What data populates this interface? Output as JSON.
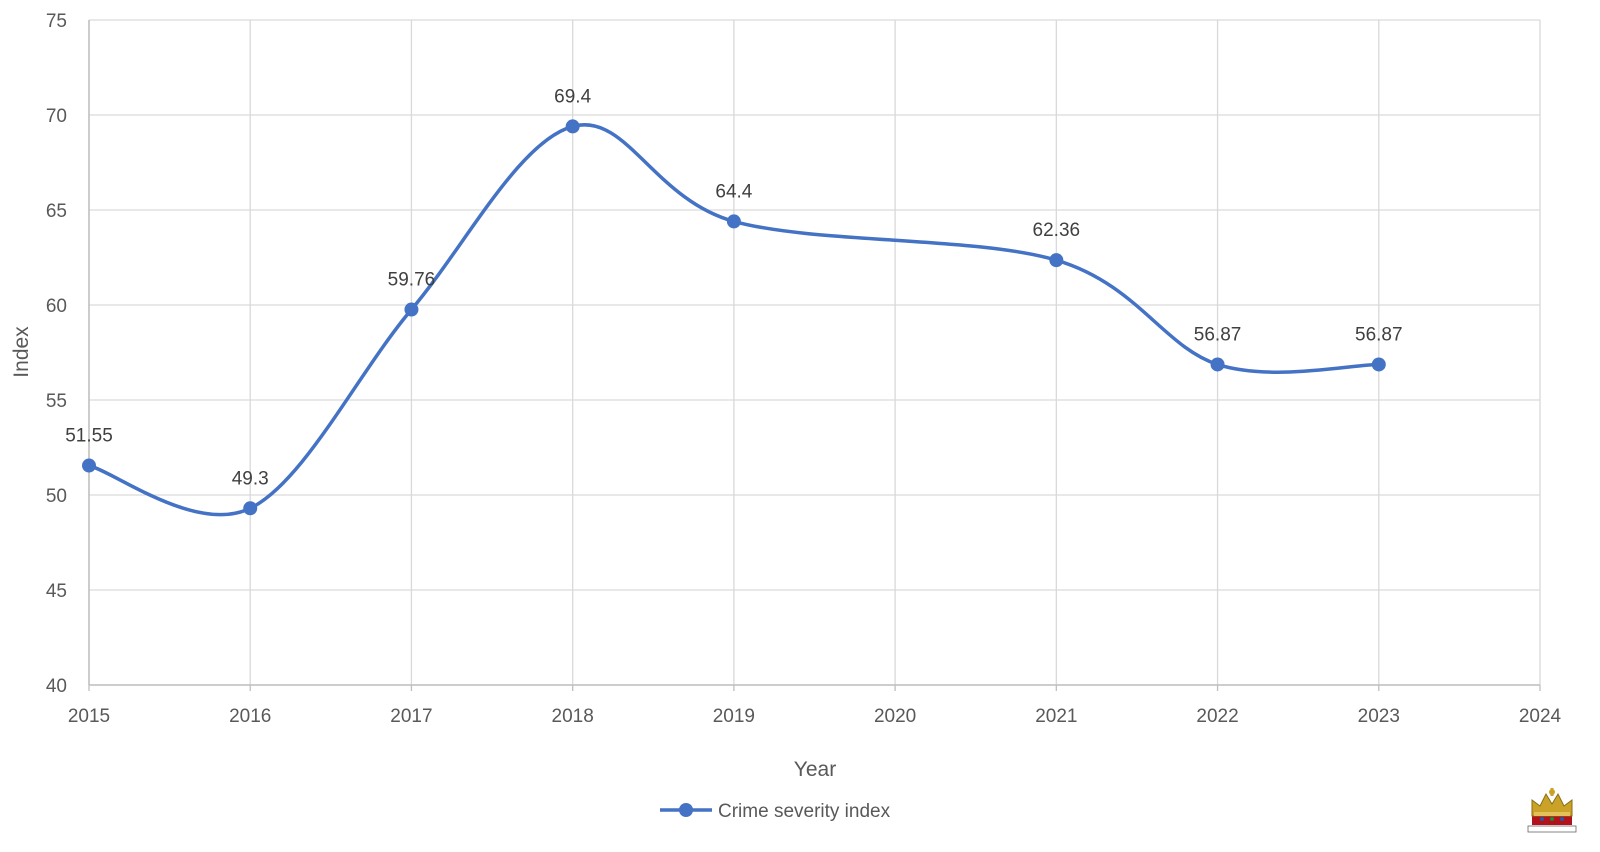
{
  "chart_data": {
    "type": "line",
    "xlabel": "Year",
    "ylabel": "Index",
    "xlim": [
      2015,
      2024
    ],
    "ylim": [
      40,
      75
    ],
    "x_ticks": [
      2015,
      2016,
      2017,
      2018,
      2019,
      2020,
      2021,
      2022,
      2023,
      2024
    ],
    "y_ticks": [
      40,
      45,
      50,
      55,
      60,
      65,
      70,
      75
    ],
    "grid": true,
    "smooth": true,
    "legend_position": "bottom",
    "series": [
      {
        "name": "Crime severity index",
        "color": "#4472C4",
        "x": [
          2015,
          2016,
          2017,
          2018,
          2019,
          2021,
          2022,
          2023
        ],
        "y": [
          51.55,
          49.3,
          59.76,
          69.4,
          64.4,
          62.36,
          56.87,
          56.87
        ],
        "labels": [
          "51.55",
          "49.3",
          "59.76",
          "69.4",
          "64.4",
          "62.36",
          "56.87",
          "56.87"
        ]
      }
    ]
  },
  "logo": {
    "icon": "crown-icon"
  }
}
